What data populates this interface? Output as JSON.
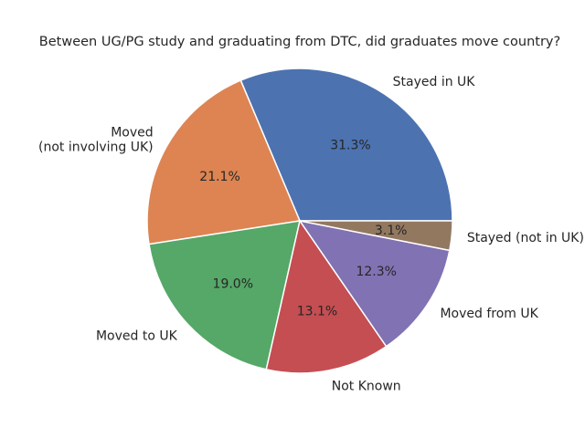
{
  "chart_data": {
    "type": "pie",
    "title": "Between UG/PG study and graduating from DTC, did graduates move country?",
    "start_angle_deg": 0,
    "direction": "counterclockwise",
    "slices": [
      {
        "label": "Stayed in UK",
        "lines": [
          "Stayed in UK"
        ],
        "value": 31.3,
        "pct_text": "31.3%",
        "color": "#4c72b0"
      },
      {
        "label": "Moved (not involving UK)",
        "lines": [
          "Moved",
          "(not involving UK)"
        ],
        "value": 21.1,
        "pct_text": "21.1%",
        "color": "#dd8452"
      },
      {
        "label": "Moved to UK",
        "lines": [
          "Moved to UK"
        ],
        "value": 19.0,
        "pct_text": "19.0%",
        "color": "#55a868"
      },
      {
        "label": "Not Known",
        "lines": [
          "Not Known"
        ],
        "value": 13.1,
        "pct_text": "13.1%",
        "color": "#c44e52"
      },
      {
        "label": "Moved from UK",
        "lines": [
          "Moved from UK"
        ],
        "value": 12.3,
        "pct_text": "12.3%",
        "color": "#8172b3"
      },
      {
        "label": "Stayed (not in UK)",
        "lines": [
          "Stayed (not in UK)"
        ],
        "value": 3.1,
        "pct_text": "3.1%",
        "color": "#937860"
      }
    ]
  }
}
